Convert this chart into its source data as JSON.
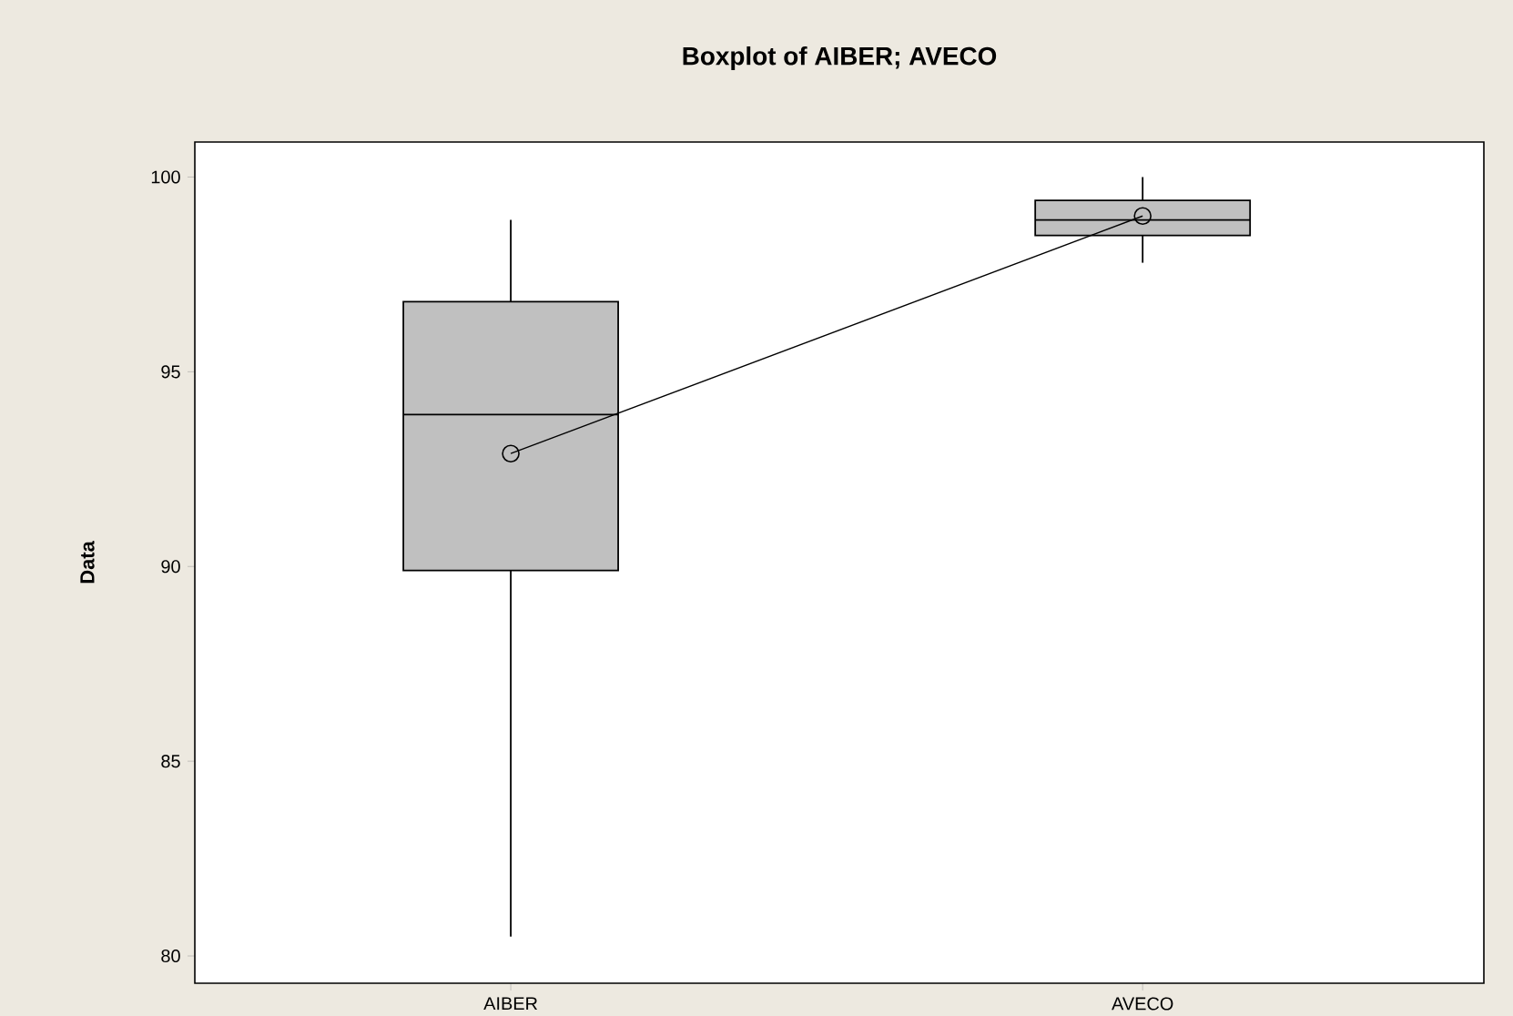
{
  "chart_data": {
    "type": "box",
    "title": "Boxplot of AIBER; AVECO",
    "ylabel": "Data",
    "categories": [
      "AIBER",
      "AVECO"
    ],
    "ylim": [
      79.3,
      100.9
    ],
    "yticks": [
      80,
      85,
      90,
      95,
      100
    ],
    "grid": false,
    "series": [
      {
        "type": "box",
        "color": "#c0c0c0",
        "boxes": [
          {
            "low": 80.5,
            "q1": 89.9,
            "median": 93.9,
            "q3": 96.8,
            "high": 98.9
          },
          {
            "low": 97.8,
            "q1": 98.5,
            "median": 98.9,
            "q3": 99.4,
            "high": 100.0
          }
        ]
      },
      {
        "type": "line",
        "color": "#000000",
        "marker": "circle",
        "values": [
          92.9,
          99.0
        ]
      }
    ]
  }
}
